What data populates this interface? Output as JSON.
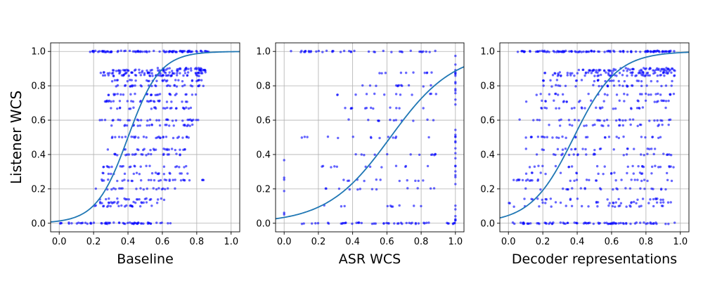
{
  "chart_data": [
    {
      "type": "scatter",
      "title": "",
      "xlabel": "Baseline",
      "ylabel": "Listener WCS",
      "xlim": [
        -0.05,
        1.05
      ],
      "ylim": [
        -0.05,
        1.05
      ],
      "xticks": [
        "0.0",
        "0.2",
        "0.4",
        "0.6",
        "0.8",
        "1.0"
      ],
      "yticks": [
        "0.0",
        "0.2",
        "0.4",
        "0.6",
        "0.8",
        "1.0"
      ],
      "grid": true,
      "series": [
        {
          "kind": "points",
          "color": "#0000ff",
          "note_pattern": "dense horizontal bands at discrete y levels",
          "bands": [
            {
              "y": 0.0,
              "x_from": 0.0,
              "x_to": 0.65,
              "n": 60
            },
            {
              "y": 0.1,
              "x_from": 0.16,
              "x_to": 0.55,
              "n": 18
            },
            {
              "y": 0.12,
              "x_from": 0.2,
              "x_to": 0.6,
              "n": 18
            },
            {
              "y": 0.14,
              "x_from": 0.22,
              "x_to": 0.62,
              "n": 18
            },
            {
              "y": 0.2,
              "x_from": 0.2,
              "x_to": 0.72,
              "n": 20
            },
            {
              "y": 0.25,
              "x_from": 0.22,
              "x_to": 0.85,
              "n": 30
            },
            {
              "y": 0.29,
              "x_from": 0.24,
              "x_to": 0.75,
              "n": 20
            },
            {
              "y": 0.33,
              "x_from": 0.25,
              "x_to": 0.78,
              "n": 22
            },
            {
              "y": 0.4,
              "x_from": 0.26,
              "x_to": 0.72,
              "n": 22
            },
            {
              "y": 0.43,
              "x_from": 0.28,
              "x_to": 0.75,
              "n": 22
            },
            {
              "y": 0.5,
              "x_from": 0.27,
              "x_to": 0.8,
              "n": 28
            },
            {
              "y": 0.57,
              "x_from": 0.3,
              "x_to": 0.78,
              "n": 24
            },
            {
              "y": 0.6,
              "x_from": 0.18,
              "x_to": 0.82,
              "n": 30
            },
            {
              "y": 0.67,
              "x_from": 0.3,
              "x_to": 0.78,
              "n": 24
            },
            {
              "y": 0.71,
              "x_from": 0.26,
              "x_to": 0.8,
              "n": 28
            },
            {
              "y": 0.75,
              "x_from": 0.28,
              "x_to": 0.82,
              "n": 28
            },
            {
              "y": 0.8,
              "x_from": 0.32,
              "x_to": 0.85,
              "n": 30
            },
            {
              "y": 0.83,
              "x_from": 0.3,
              "x_to": 0.83,
              "n": 28
            },
            {
              "y": 0.86,
              "x_from": 0.25,
              "x_to": 0.85,
              "n": 38
            },
            {
              "y": 0.875,
              "x_from": 0.24,
              "x_to": 0.87,
              "n": 45
            },
            {
              "y": 0.89,
              "x_from": 0.3,
              "x_to": 0.87,
              "n": 40
            },
            {
              "y": 0.9,
              "x_from": 0.55,
              "x_to": 0.85,
              "n": 22
            },
            {
              "y": 1.0,
              "x_from": 0.17,
              "x_to": 0.87,
              "n": 90
            }
          ]
        },
        {
          "kind": "logistic_fit",
          "color": "#1f77b4",
          "midpoint": 0.4,
          "slope": 10.8
        }
      ]
    },
    {
      "type": "scatter",
      "title": "",
      "xlabel": "ASR WCS",
      "ylabel": "",
      "xlim": [
        -0.05,
        1.05
      ],
      "ylim": [
        -0.05,
        1.05
      ],
      "xticks": [
        "0.0",
        "0.2",
        "0.4",
        "0.6",
        "0.8",
        "1.0"
      ],
      "yticks": [
        "0.0",
        "0.2",
        "0.4",
        "0.6",
        "0.8",
        "1.0"
      ],
      "grid": true,
      "series": [
        {
          "kind": "points",
          "color": "#0000ff",
          "note_pattern": "sparse grid of discrete (x, y) ratio points, dense at x=0, y=0, y=1 and x=1",
          "bands": [
            {
              "y": 0.0,
              "x_from": 0.1,
              "x_to": 1.0,
              "n": 50
            },
            {
              "y": 1.0,
              "x_from": 0.0,
              "x_to": 0.9,
              "n": 40
            },
            {
              "y": 0.1,
              "x_from": 0.1,
              "x_to": 0.9,
              "n": 10
            },
            {
              "y": 0.2,
              "x_from": 0.2,
              "x_to": 0.9,
              "n": 12
            },
            {
              "y": 0.25,
              "x_from": 0.25,
              "x_to": 0.9,
              "n": 12
            },
            {
              "y": 0.33,
              "x_from": 0.2,
              "x_to": 0.9,
              "n": 12
            },
            {
              "y": 0.4,
              "x_from": 0.3,
              "x_to": 0.9,
              "n": 12
            },
            {
              "y": 0.5,
              "x_from": 0.0,
              "x_to": 0.9,
              "n": 14
            },
            {
              "y": 0.6,
              "x_from": 0.35,
              "x_to": 0.9,
              "n": 12
            },
            {
              "y": 0.67,
              "x_from": 0.35,
              "x_to": 0.9,
              "n": 12
            },
            {
              "y": 0.75,
              "x_from": 0.3,
              "x_to": 0.9,
              "n": 12
            },
            {
              "y": 0.8,
              "x_from": 0.4,
              "x_to": 0.9,
              "n": 12
            },
            {
              "y": 0.875,
              "x_from": 0.5,
              "x_to": 0.9,
              "n": 10
            }
          ],
          "vertical_bands": [
            {
              "x": 1.0,
              "y_from": 0.0,
              "y_to": 1.0,
              "n": 35
            },
            {
              "x": 0.0,
              "y_from": 0.0,
              "y_to": 0.5,
              "n": 6
            }
          ]
        },
        {
          "kind": "logistic_fit",
          "color": "#1f77b4",
          "midpoint": 0.62,
          "slope": 5.4
        }
      ]
    },
    {
      "type": "scatter",
      "title": "",
      "xlabel": "Decoder representations",
      "ylabel": "",
      "xlim": [
        -0.05,
        1.05
      ],
      "ylim": [
        -0.05,
        1.05
      ],
      "xticks": [
        "0.0",
        "0.2",
        "0.4",
        "0.6",
        "0.8",
        "1.0"
      ],
      "yticks": [
        "0.0",
        "0.2",
        "0.4",
        "0.6",
        "0.8",
        "1.0"
      ],
      "grid": true,
      "series": [
        {
          "kind": "points",
          "color": "#0000ff",
          "note_pattern": "dense horizontal bands at discrete y levels",
          "bands": [
            {
              "y": 0.0,
              "x_from": 0.0,
              "x_to": 0.97,
              "n": 80
            },
            {
              "y": 0.1,
              "x_from": 0.02,
              "x_to": 0.9,
              "n": 22
            },
            {
              "y": 0.12,
              "x_from": 0.0,
              "x_to": 0.95,
              "n": 24
            },
            {
              "y": 0.14,
              "x_from": 0.04,
              "x_to": 0.9,
              "n": 22
            },
            {
              "y": 0.2,
              "x_from": 0.05,
              "x_to": 0.95,
              "n": 24
            },
            {
              "y": 0.25,
              "x_from": 0.02,
              "x_to": 0.97,
              "n": 30
            },
            {
              "y": 0.29,
              "x_from": 0.1,
              "x_to": 0.95,
              "n": 20
            },
            {
              "y": 0.33,
              "x_from": 0.05,
              "x_to": 0.97,
              "n": 24
            },
            {
              "y": 0.4,
              "x_from": 0.05,
              "x_to": 0.95,
              "n": 24
            },
            {
              "y": 0.43,
              "x_from": 0.1,
              "x_to": 0.95,
              "n": 22
            },
            {
              "y": 0.5,
              "x_from": 0.05,
              "x_to": 0.97,
              "n": 30
            },
            {
              "y": 0.57,
              "x_from": 0.15,
              "x_to": 0.95,
              "n": 22
            },
            {
              "y": 0.6,
              "x_from": 0.05,
              "x_to": 0.97,
              "n": 28
            },
            {
              "y": 0.67,
              "x_from": 0.15,
              "x_to": 0.95,
              "n": 24
            },
            {
              "y": 0.71,
              "x_from": 0.1,
              "x_to": 0.97,
              "n": 26
            },
            {
              "y": 0.75,
              "x_from": 0.15,
              "x_to": 0.97,
              "n": 26
            },
            {
              "y": 0.8,
              "x_from": 0.2,
              "x_to": 0.97,
              "n": 26
            },
            {
              "y": 0.83,
              "x_from": 0.2,
              "x_to": 0.97,
              "n": 24
            },
            {
              "y": 0.86,
              "x_from": 0.25,
              "x_to": 0.97,
              "n": 36
            },
            {
              "y": 0.875,
              "x_from": 0.2,
              "x_to": 0.97,
              "n": 40
            },
            {
              "y": 0.89,
              "x_from": 0.4,
              "x_to": 0.97,
              "n": 40
            },
            {
              "y": 0.9,
              "x_from": 0.6,
              "x_to": 0.97,
              "n": 24
            },
            {
              "y": 1.0,
              "x_from": 0.05,
              "x_to": 0.97,
              "n": 110
            }
          ]
        },
        {
          "kind": "logistic_fit",
          "color": "#1f77b4",
          "midpoint": 0.38,
          "slope": 8.0
        }
      ]
    }
  ]
}
